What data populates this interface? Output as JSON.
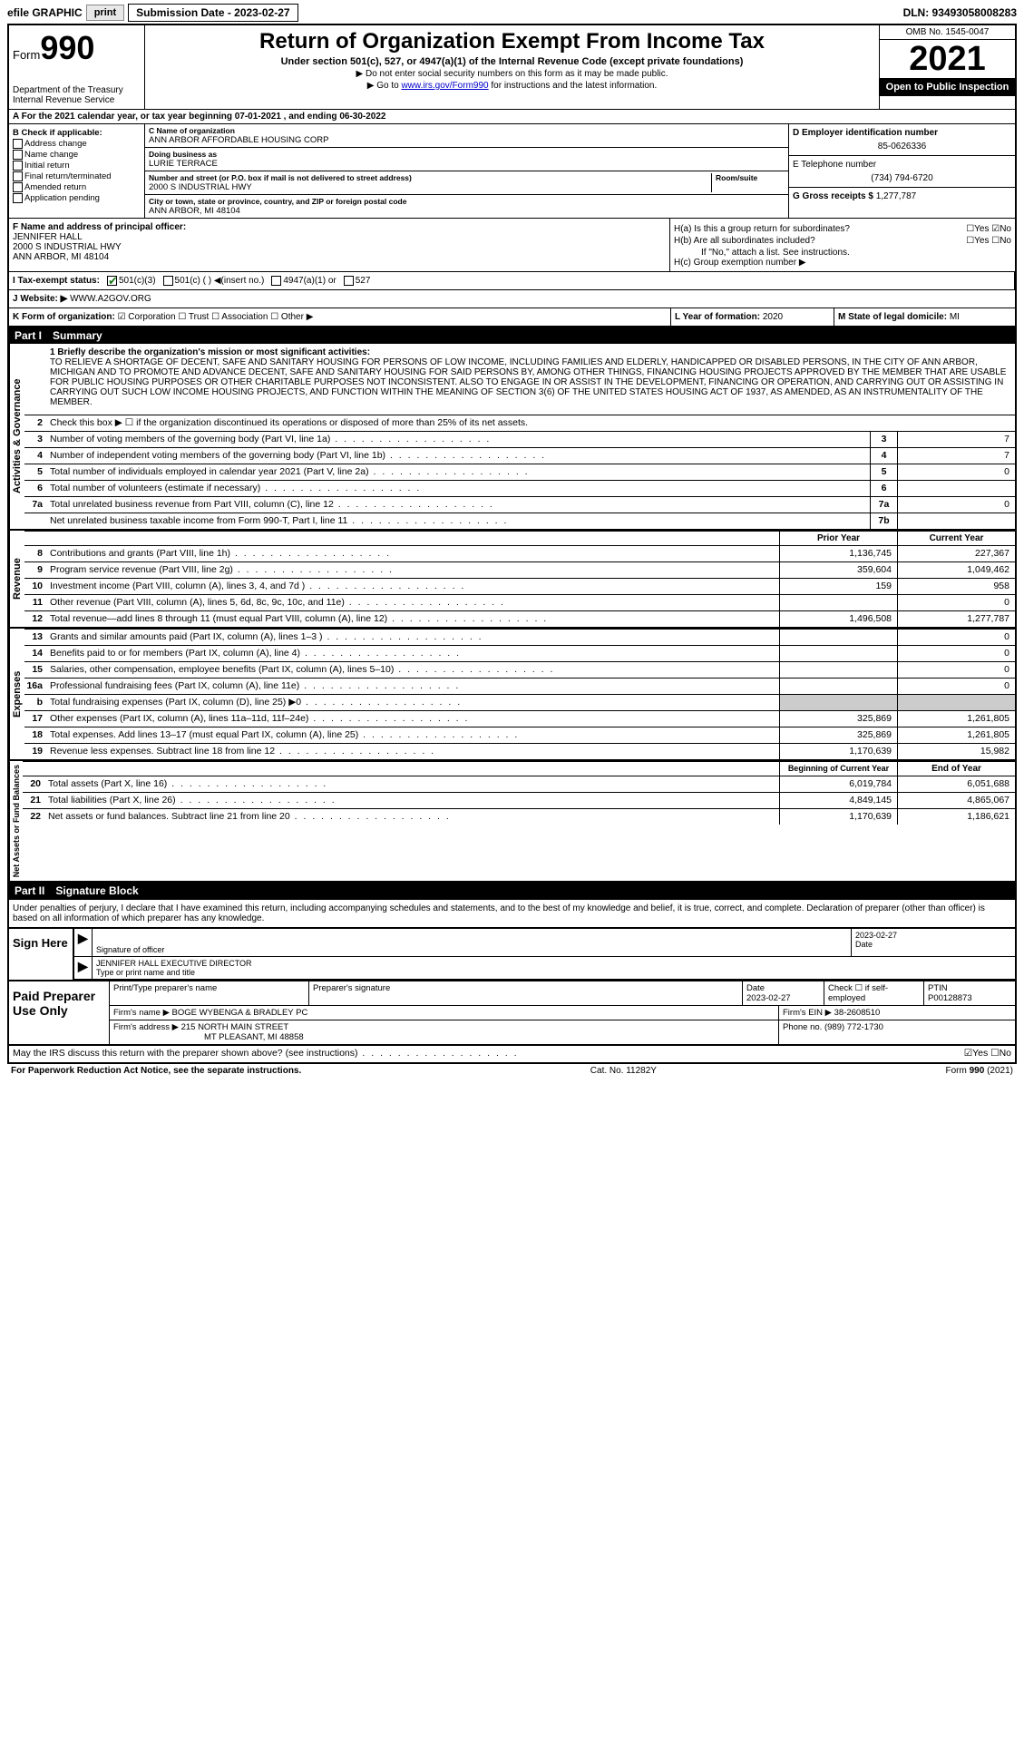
{
  "topbar": {
    "efile": "efile GRAPHIC",
    "print": "print",
    "submission": "Submission Date - 2023-02-27",
    "dln": "DLN: 93493058008283"
  },
  "header": {
    "form_prefix": "Form",
    "form_number": "990",
    "dept": "Department of the Treasury Internal Revenue Service",
    "title": "Return of Organization Exempt From Income Tax",
    "sub": "Under section 501(c), 527, or 4947(a)(1) of the Internal Revenue Code (except private foundations)",
    "note1": "▶ Do not enter social security numbers on this form as it may be made public.",
    "note2_pre": "▶ Go to ",
    "note2_link": "www.irs.gov/Form990",
    "note2_post": " for instructions and the latest information.",
    "omb": "OMB No. 1545-0047",
    "year": "2021",
    "open": "Open to Public Inspection"
  },
  "row_a": "A For the 2021 calendar year, or tax year beginning 07-01-2021   , and ending 06-30-2022",
  "col_b": {
    "hdr": "B Check if applicable:",
    "opts": [
      "Address change",
      "Name change",
      "Initial return",
      "Final return/terminated",
      "Amended return",
      "Application pending"
    ]
  },
  "col_c": {
    "name_lbl": "C Name of organization",
    "name": "ANN ARBOR AFFORDABLE HOUSING CORP",
    "dba_lbl": "Doing business as",
    "dba": "LURIE TERRACE",
    "addr_lbl": "Number and street (or P.O. box if mail is not delivered to street address)",
    "addr": "2000 S INDUSTRIAL HWY",
    "room_lbl": "Room/suite",
    "city_lbl": "City or town, state or province, country, and ZIP or foreign postal code",
    "city": "ANN ARBOR, MI  48104"
  },
  "col_de": {
    "d_lbl": "D Employer identification number",
    "d_val": "85-0626336",
    "e_lbl": "E Telephone number",
    "e_val": "(734) 794-6720",
    "g_lbl": "G Gross receipts $",
    "g_val": "1,277,787"
  },
  "row_f": {
    "lbl": "F  Name and address of principal officer:",
    "name": "JENNIFER HALL",
    "addr1": "2000 S INDUSTRIAL HWY",
    "addr2": "ANN ARBOR, MI  48104"
  },
  "col_h": {
    "ha": "H(a)  Is this a group return for subordinates?",
    "ha_yn": "☐Yes  ☑No",
    "hb": "H(b)  Are all subordinates included?",
    "hb_yn": "☐Yes  ☐No",
    "hb_note": "If \"No,\" attach a list. See instructions.",
    "hc": "H(c)  Group exemption number ▶"
  },
  "row_i": {
    "lbl": "I   Tax-exempt status:",
    "o1": "501(c)(3)",
    "o2": "501(c) (  ) ◀(insert no.)",
    "o3": "4947(a)(1) or",
    "o4": "527"
  },
  "row_j": {
    "lbl": "J   Website: ▶",
    "val": "WWW.A2GOV.ORG"
  },
  "row_k": {
    "lbl": "K Form of organization:",
    "opts": "☑ Corporation  ☐ Trust  ☐ Association  ☐ Other ▶"
  },
  "col_l": {
    "lbl": "L Year of formation:",
    "val": "2020"
  },
  "col_m": {
    "lbl": "M State of legal domicile:",
    "val": "MI"
  },
  "part1": {
    "hdr_pt": "Part I",
    "hdr_ttl": "Summary",
    "side1": "Activities & Governance",
    "side2": "Revenue",
    "side3": "Expenses",
    "side4": "Net Assets or Fund Balances",
    "l1_lbl": "1  Briefly describe the organization's mission or most significant activities:",
    "l1_txt": "TO RELIEVE A SHORTAGE OF DECENT, SAFE AND SANITARY HOUSING FOR PERSONS OF LOW INCOME, INCLUDING FAMILIES AND ELDERLY, HANDICAPPED OR DISABLED PERSONS, IN THE CITY OF ANN ARBOR, MICHIGAN AND TO PROMOTE AND ADVANCE DECENT, SAFE AND SANITARY HOUSING FOR SAID PERSONS BY, AMONG OTHER THINGS, FINANCING HOUSING PROJECTS APPROVED BY THE MEMBER THAT ARE USABLE FOR PUBLIC HOUSING PURPOSES OR OTHER CHARITABLE PURPOSES NOT INCONSISTENT. ALSO TO ENGAGE IN OR ASSIST IN THE DEVELOPMENT, FINANCING OR OPERATION, AND CARRYING OUT OR ASSISTING IN CARRYING OUT SUCH LOW INCOME HOUSING PROJECTS, AND FUNCTION WITHIN THE MEANING OF SECTION 3(6) OF THE UNITED STATES HOUSING ACT OF 1937, AS AMENDED, AS AN INSTRUMENTALITY OF THE MEMBER.",
    "l2": "Check this box ▶ ☐  if the organization discontinued its operations or disposed of more than 25% of its net assets.",
    "rows_ag": [
      {
        "n": "3",
        "t": "Number of voting members of the governing body (Part VI, line 1a)",
        "b": "3",
        "v": "7"
      },
      {
        "n": "4",
        "t": "Number of independent voting members of the governing body (Part VI, line 1b)",
        "b": "4",
        "v": "7"
      },
      {
        "n": "5",
        "t": "Total number of individuals employed in calendar year 2021 (Part V, line 2a)",
        "b": "5",
        "v": "0"
      },
      {
        "n": "6",
        "t": "Total number of volunteers (estimate if necessary)",
        "b": "6",
        "v": ""
      },
      {
        "n": "7a",
        "t": "Total unrelated business revenue from Part VIII, column (C), line 12",
        "b": "7a",
        "v": "0"
      },
      {
        "n": "",
        "t": "Net unrelated business taxable income from Form 990-T, Part I, line 11",
        "b": "7b",
        "v": ""
      }
    ],
    "col_prior": "Prior Year",
    "col_curr": "Current Year",
    "rows_rev": [
      {
        "n": "8",
        "t": "Contributions and grants (Part VIII, line 1h)",
        "p": "1,136,745",
        "c": "227,367"
      },
      {
        "n": "9",
        "t": "Program service revenue (Part VIII, line 2g)",
        "p": "359,604",
        "c": "1,049,462"
      },
      {
        "n": "10",
        "t": "Investment income (Part VIII, column (A), lines 3, 4, and 7d )",
        "p": "159",
        "c": "958"
      },
      {
        "n": "11",
        "t": "Other revenue (Part VIII, column (A), lines 5, 6d, 8c, 9c, 10c, and 11e)",
        "p": "",
        "c": "0"
      },
      {
        "n": "12",
        "t": "Total revenue—add lines 8 through 11 (must equal Part VIII, column (A), line 12)",
        "p": "1,496,508",
        "c": "1,277,787"
      }
    ],
    "rows_exp": [
      {
        "n": "13",
        "t": "Grants and similar amounts paid (Part IX, column (A), lines 1–3 )",
        "p": "",
        "c": "0"
      },
      {
        "n": "14",
        "t": "Benefits paid to or for members (Part IX, column (A), line 4)",
        "p": "",
        "c": "0"
      },
      {
        "n": "15",
        "t": "Salaries, other compensation, employee benefits (Part IX, column (A), lines 5–10)",
        "p": "",
        "c": "0"
      },
      {
        "n": "16a",
        "t": "Professional fundraising fees (Part IX, column (A), line 11e)",
        "p": "",
        "c": "0"
      },
      {
        "n": "b",
        "t": "Total fundraising expenses (Part IX, column (D), line 25) ▶0",
        "p": "SHADE",
        "c": "SHADE"
      },
      {
        "n": "17",
        "t": "Other expenses (Part IX, column (A), lines 11a–11d, 11f–24e)",
        "p": "325,869",
        "c": "1,261,805"
      },
      {
        "n": "18",
        "t": "Total expenses. Add lines 13–17 (must equal Part IX, column (A), line 25)",
        "p": "325,869",
        "c": "1,261,805"
      },
      {
        "n": "19",
        "t": "Revenue less expenses. Subtract line 18 from line 12",
        "p": "1,170,639",
        "c": "15,982"
      }
    ],
    "col_beg": "Beginning of Current Year",
    "col_end": "End of Year",
    "rows_na": [
      {
        "n": "20",
        "t": "Total assets (Part X, line 16)",
        "p": "6,019,784",
        "c": "6,051,688"
      },
      {
        "n": "21",
        "t": "Total liabilities (Part X, line 26)",
        "p": "4,849,145",
        "c": "4,865,067"
      },
      {
        "n": "22",
        "t": "Net assets or fund balances. Subtract line 21 from line 20",
        "p": "1,170,639",
        "c": "1,186,621"
      }
    ]
  },
  "part2": {
    "hdr_pt": "Part II",
    "hdr_ttl": "Signature Block",
    "intro": "Under penalties of perjury, I declare that I have examined this return, including accompanying schedules and statements, and to the best of my knowledge and belief, it is true, correct, and complete. Declaration of preparer (other than officer) is based on all information of which preparer has any knowledge."
  },
  "sign": {
    "left": "Sign Here",
    "sig_lbl": "Signature of officer",
    "date": "2023-02-27",
    "date_lbl": "Date",
    "name": "JENNIFER HALL  EXECUTIVE DIRECTOR",
    "name_lbl": "Type or print name and title"
  },
  "paid": {
    "left": "Paid Preparer Use Only",
    "h_name": "Print/Type preparer's name",
    "h_sig": "Preparer's signature",
    "h_date": "Date",
    "date": "2023-02-27",
    "h_check": "Check ☐ if self-employed",
    "h_ptin": "PTIN",
    "ptin": "P00128873",
    "firm_lbl": "Firm's name      ▶",
    "firm": "BOGE WYBENGA & BRADLEY PC",
    "ein_lbl": "Firm's EIN ▶",
    "ein": "38-2608510",
    "addr_lbl": "Firm's address ▶",
    "addr1": "215 NORTH MAIN STREET",
    "addr2": "MT PLEASANT, MI  48858",
    "phone_lbl": "Phone no.",
    "phone": "(989) 772-1730"
  },
  "discuss": "May the IRS discuss this return with the preparer shown above? (see instructions)",
  "discuss_yn": "☑Yes  ☐No",
  "footer": {
    "left": "For Paperwork Reduction Act Notice, see the separate instructions.",
    "mid": "Cat. No. 11282Y",
    "right": "Form 990 (2021)"
  }
}
